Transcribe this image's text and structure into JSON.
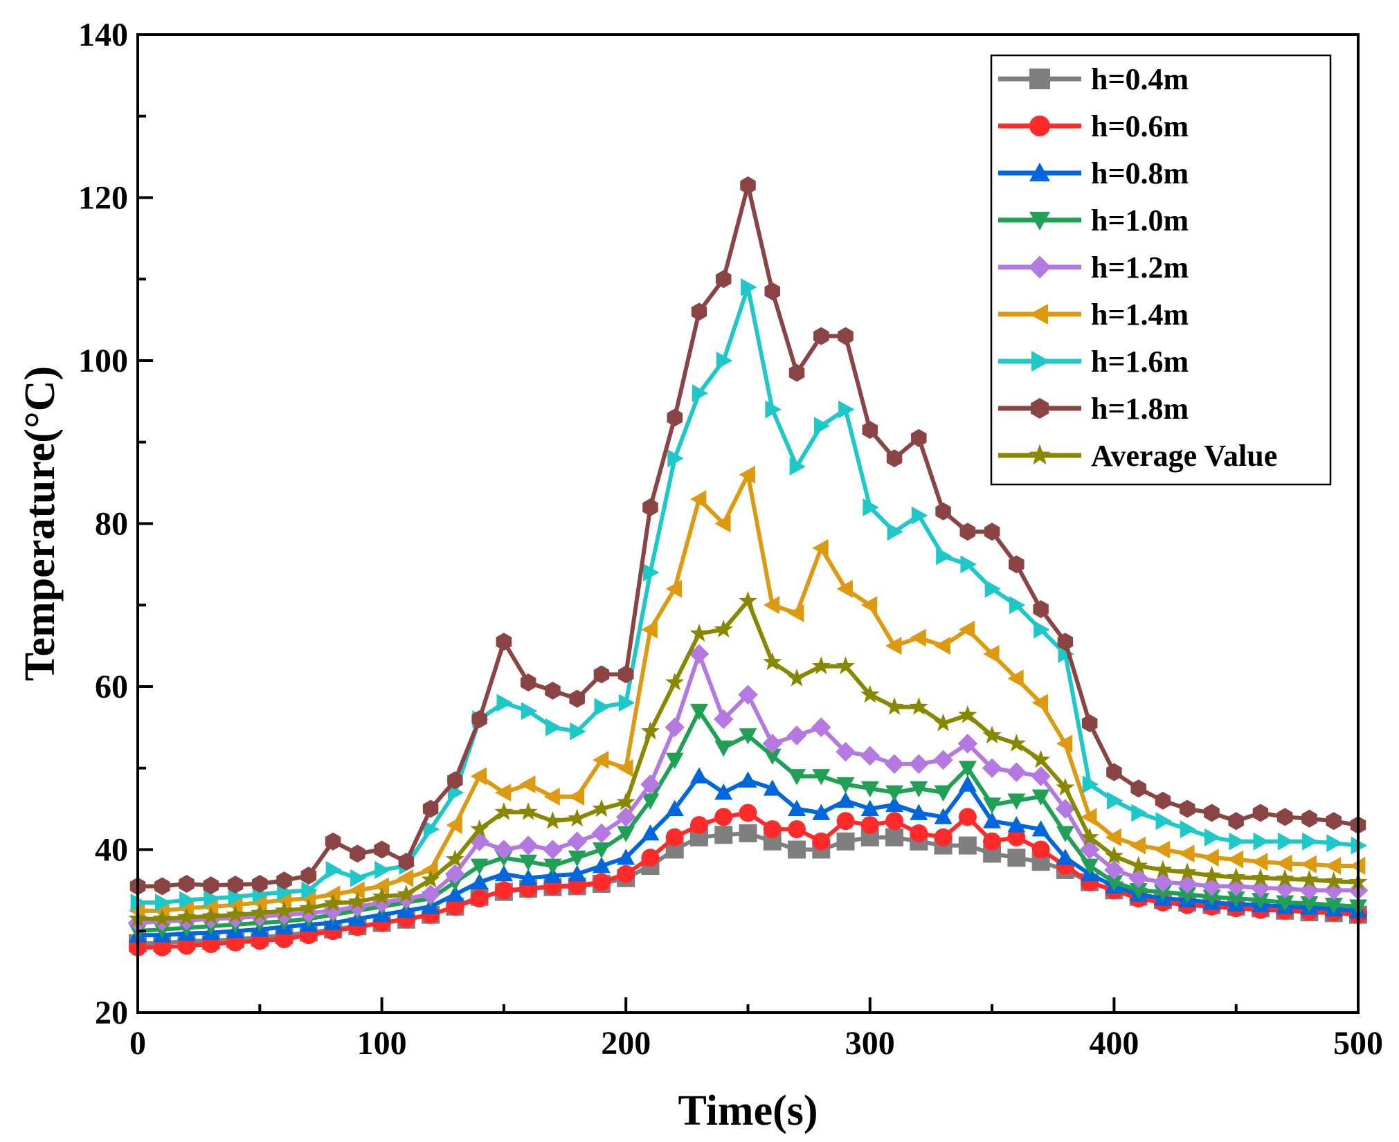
{
  "chart_data": {
    "type": "line",
    "title": "",
    "xlabel": "Time(s)",
    "ylabel": "Temperature(°C)",
    "xlim": [
      0,
      500
    ],
    "ylim": [
      20,
      140
    ],
    "xticks": [
      0,
      100,
      200,
      300,
      400,
      500
    ],
    "yticks": [
      20,
      40,
      60,
      80,
      100,
      120,
      140
    ],
    "grid": false,
    "legend_position": "top-right",
    "x": [
      0,
      10,
      20,
      30,
      40,
      50,
      60,
      70,
      80,
      90,
      100,
      110,
      120,
      130,
      140,
      150,
      160,
      170,
      180,
      190,
      200,
      210,
      220,
      230,
      240,
      250,
      260,
      270,
      280,
      290,
      300,
      310,
      320,
      330,
      340,
      350,
      360,
      370,
      380,
      390,
      400,
      410,
      420,
      430,
      440,
      450,
      460,
      470,
      480,
      490,
      500
    ],
    "series": [
      {
        "name": "h=0.4m",
        "color": "#7f7f7f",
        "marker": "square",
        "values": [
          28.5,
          28.5,
          28.8,
          28.8,
          29,
          29.2,
          29.5,
          29.8,
          30.2,
          30.6,
          31,
          31.4,
          32,
          33,
          34.2,
          34.8,
          35.2,
          35.4,
          35.5,
          35.8,
          36.5,
          38,
          40,
          41.5,
          41.8,
          42,
          41,
          40,
          40,
          41,
          41.5,
          41.5,
          41,
          40.5,
          40.5,
          39.5,
          39,
          38.5,
          37.5,
          36,
          35,
          34.2,
          33.8,
          33.5,
          33.2,
          33,
          32.8,
          32.5,
          32.3,
          32.2,
          32
        ]
      },
      {
        "name": "h=0.6m",
        "color": "#ff2a2a",
        "marker": "circle",
        "values": [
          28,
          28,
          28.2,
          28.4,
          28.6,
          28.8,
          29,
          29.5,
          30,
          30.5,
          31,
          31.5,
          32,
          33,
          34,
          35,
          35.2,
          35.5,
          35.6,
          36,
          37,
          39,
          41.5,
          43,
          44,
          44.5,
          42.5,
          42.5,
          41,
          43.5,
          43,
          43.5,
          42,
          41.5,
          44,
          41,
          41.5,
          40,
          38,
          36,
          35,
          34,
          33.5,
          33.2,
          33,
          32.8,
          32.6,
          32.5,
          32.4,
          32.3,
          32
        ]
      },
      {
        "name": "h=0.8m",
        "color": "#0066dd",
        "marker": "triangle-up",
        "values": [
          29.5,
          29.5,
          29.7,
          29.8,
          30,
          30.2,
          30.5,
          30.8,
          31,
          31.5,
          32,
          32.5,
          33,
          34.5,
          36,
          37,
          36.5,
          36.8,
          37,
          38,
          39,
          42,
          45,
          49,
          47,
          48.5,
          47.5,
          45,
          44.5,
          46,
          45,
          45.5,
          44.5,
          44,
          48,
          43.5,
          43,
          42.5,
          39,
          37,
          35.5,
          34.5,
          34,
          33.8,
          33.5,
          33.3,
          33.2,
          33,
          32.9,
          32.7,
          32.5
        ]
      },
      {
        "name": "h=1.0m",
        "color": "#1fa055",
        "marker": "triangle-down",
        "values": [
          30,
          30.2,
          30.4,
          30.6,
          30.8,
          31,
          31.2,
          31.5,
          32,
          32.5,
          33,
          33.5,
          34,
          36,
          38,
          39,
          38.5,
          38,
          39,
          40,
          42,
          46,
          51,
          57,
          52.5,
          54,
          51.5,
          49,
          49,
          48,
          47.5,
          47,
          47.5,
          47,
          50,
          45.5,
          46,
          46.5,
          42,
          38,
          36,
          35,
          34.8,
          34.5,
          34.2,
          34,
          33.8,
          33.5,
          33.4,
          33.2,
          33
        ]
      },
      {
        "name": "h=1.2m",
        "color": "#b479e0",
        "marker": "diamond",
        "values": [
          31,
          31.2,
          31.3,
          31.5,
          31.6,
          31.8,
          32,
          32.2,
          32.5,
          33,
          33.5,
          34,
          34.5,
          37,
          41,
          40,
          40.5,
          40,
          41,
          42,
          44,
          48,
          55,
          64,
          56,
          59,
          53,
          54,
          55,
          52,
          51.5,
          50.5,
          50.5,
          51,
          53,
          50,
          49.5,
          49,
          45,
          40,
          37.5,
          36.5,
          36,
          35.8,
          35.5,
          35.5,
          35.3,
          35.2,
          35,
          35,
          35
        ]
      },
      {
        "name": "h=1.4m",
        "color": "#dd9a10",
        "marker": "triangle-left",
        "values": [
          32.5,
          32.5,
          32.8,
          33,
          33.2,
          33.5,
          33.8,
          34,
          34.5,
          35,
          35.5,
          36.5,
          37.5,
          43,
          49,
          47,
          48,
          46.5,
          46.5,
          51,
          50,
          67,
          72,
          83,
          80,
          86,
          70,
          69,
          77,
          72,
          70,
          65,
          66,
          65,
          67,
          64,
          61,
          58,
          53,
          44,
          41.5,
          40.5,
          40,
          39.5,
          39,
          38.8,
          38.5,
          38.3,
          38.2,
          38,
          38
        ]
      },
      {
        "name": "h=1.6m",
        "color": "#1ec8c8",
        "marker": "triangle-right",
        "values": [
          33.5,
          33.5,
          33.8,
          34,
          34.2,
          34.5,
          34.8,
          35,
          37.5,
          36.5,
          37.5,
          38,
          42.5,
          47,
          56,
          58,
          57,
          55,
          54.5,
          57.5,
          58,
          74,
          88,
          96,
          100,
          109,
          94,
          87,
          92,
          94,
          82,
          79,
          81,
          76,
          75,
          72,
          70,
          67,
          64,
          48,
          46,
          44.5,
          43.5,
          42.5,
          41.5,
          41,
          41,
          41,
          41,
          40.8,
          40.5
        ]
      },
      {
        "name": "h=1.8m",
        "color": "#8a4444",
        "marker": "hexagon",
        "values": [
          35.5,
          35.5,
          35.8,
          35.6,
          35.7,
          35.8,
          36.2,
          36.8,
          41,
          39.5,
          40,
          38.5,
          45,
          48.5,
          56,
          65.5,
          60.5,
          59.5,
          58.5,
          61.5,
          61.5,
          82,
          93,
          106,
          110,
          121.5,
          108.5,
          98.5,
          103,
          103,
          91.5,
          88,
          90.5,
          81.5,
          79,
          79,
          75,
          69.5,
          65.5,
          55.5,
          49.5,
          47.5,
          46,
          45,
          44.5,
          43.5,
          44.5,
          44,
          43.8,
          43.5,
          43
        ]
      },
      {
        "name": "Average Value",
        "color": "#888800",
        "marker": "star",
        "values": [
          31.5,
          31.5,
          31.7,
          31.8,
          32,
          32.2,
          32.5,
          32.8,
          33.4,
          33.6,
          34.2,
          34.5,
          36.3,
          38.8,
          42.5,
          44.6,
          44.6,
          43.5,
          43.8,
          45,
          45.8,
          54.5,
          60.5,
          66.5,
          67,
          70.5,
          63,
          61,
          62.5,
          62.5,
          59,
          57.5,
          57.5,
          55.5,
          56.5,
          54,
          53,
          51,
          47.6,
          41.5,
          39.2,
          38,
          37.5,
          37.2,
          36.8,
          36.6,
          36.5,
          36.4,
          36.3,
          36.1,
          36
        ]
      }
    ]
  }
}
